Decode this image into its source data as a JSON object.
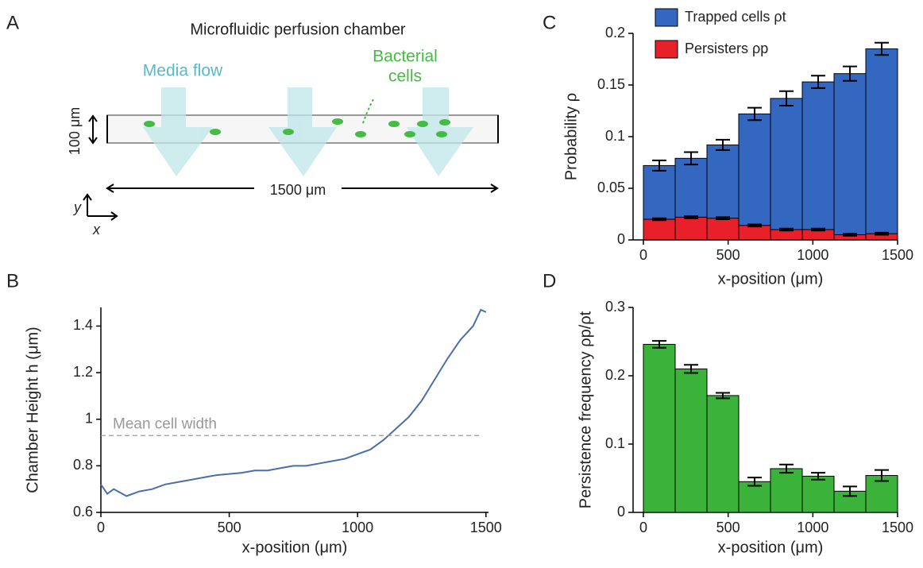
{
  "diagram": {
    "panel_label": "A",
    "title": "Microfluidic perfusion chamber",
    "flow_label": "Media flow",
    "cells_label": [
      "Bacterial",
      "cells"
    ],
    "height_label": "100 μm",
    "length_label": "1500 μm",
    "y_axis": "y",
    "x_axis": "x"
  },
  "chart_data": [
    {
      "type": "line",
      "panel_label": "B",
      "xlabel": "x-position (μm)",
      "ylabel": "Chamber Height  h  (μm)",
      "color": "#4a6fa8",
      "x": [
        0,
        25,
        50,
        100,
        150,
        200,
        250,
        300,
        350,
        400,
        450,
        500,
        550,
        600,
        650,
        700,
        750,
        800,
        850,
        900,
        950,
        1000,
        1050,
        1100,
        1150,
        1200,
        1250,
        1300,
        1350,
        1400,
        1450,
        1480,
        1500
      ],
      "values": [
        0.72,
        0.68,
        0.7,
        0.67,
        0.69,
        0.7,
        0.72,
        0.73,
        0.74,
        0.75,
        0.76,
        0.765,
        0.77,
        0.78,
        0.78,
        0.79,
        0.8,
        0.8,
        0.81,
        0.82,
        0.83,
        0.85,
        0.87,
        0.91,
        0.96,
        1.01,
        1.08,
        1.17,
        1.26,
        1.34,
        1.4,
        1.47,
        1.46
      ],
      "reference_line": {
        "value": 0.93,
        "label": "Mean cell width",
        "color": "#999999"
      },
      "xlim": [
        0,
        1510
      ],
      "xticks": [
        0,
        500,
        1000,
        1500
      ],
      "ylim": [
        0.6,
        1.48
      ],
      "yticks": [
        0.6,
        0.8,
        1,
        1.2,
        1.4
      ]
    },
    {
      "type": "histogram",
      "panel_label": "C",
      "xlabel": "x-position (μm)",
      "ylabel": "Probability  ρ",
      "bins": [
        0,
        187.5,
        375,
        562.5,
        750,
        937.5,
        1125,
        1312.5,
        1500
      ],
      "series": [
        {
          "name": "Trapped cells  ρt",
          "color": "#3468c0",
          "values": [
            0.072,
            0.079,
            0.092,
            0.122,
            0.137,
            0.153,
            0.161,
            0.185
          ],
          "errors": [
            0.005,
            0.006,
            0.005,
            0.006,
            0.007,
            0.006,
            0.007,
            0.006
          ]
        },
        {
          "name": "Persisters  ρp",
          "color": "#e8202a",
          "values": [
            0.02,
            0.022,
            0.021,
            0.014,
            0.01,
            0.01,
            0.005,
            0.006
          ],
          "errors": [
            0.001,
            0.001,
            0.001,
            0.001,
            0.001,
            0.001,
            0.001,
            0.001
          ]
        }
      ],
      "xlim": [
        0,
        1500
      ],
      "xticks": [
        0,
        500,
        1000,
        1500
      ],
      "ylim": [
        0,
        0.2
      ],
      "yticks": [
        0,
        0.05,
        0.1,
        0.15,
        0.2
      ]
    },
    {
      "type": "histogram",
      "panel_label": "D",
      "xlabel": "x-position (μm)",
      "ylabel": "Persistence frequency ρp/ρt",
      "bins": [
        0,
        187.5,
        375,
        562.5,
        750,
        937.5,
        1125,
        1312.5,
        1500
      ],
      "series": [
        {
          "color": "#3bb33b",
          "values": [
            0.246,
            0.21,
            0.171,
            0.045,
            0.064,
            0.053,
            0.031,
            0.054
          ],
          "errors": [
            0.005,
            0.006,
            0.004,
            0.006,
            0.006,
            0.005,
            0.007,
            0.008
          ]
        }
      ],
      "xlim": [
        0,
        1500
      ],
      "xticks": [
        0,
        500,
        1000,
        1500
      ],
      "ylim": [
        0,
        0.3
      ],
      "yticks": [
        0,
        0.1,
        0.2,
        0.3
      ]
    }
  ]
}
